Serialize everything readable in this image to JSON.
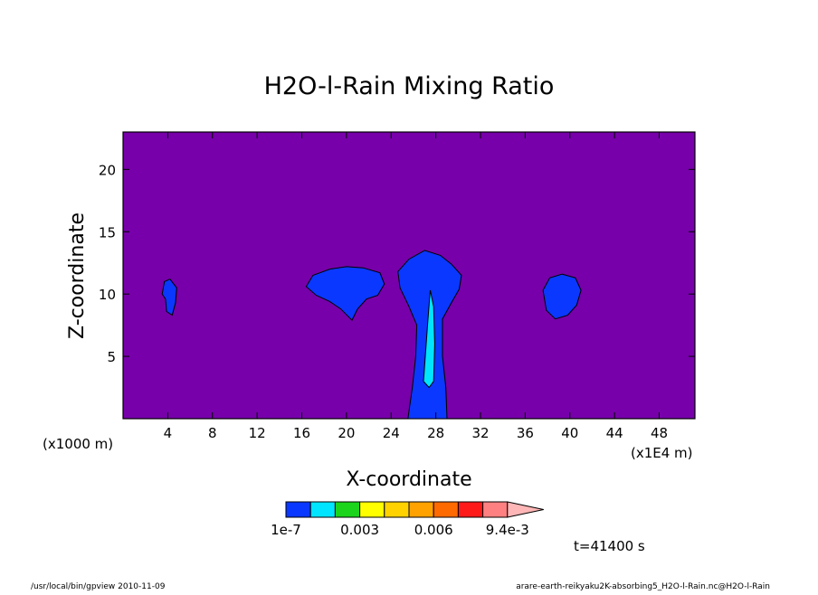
{
  "chart_data": {
    "type": "heatmap",
    "title": "H2O-l-Rain Mixing Ratio",
    "xlabel": "X-coordinate",
    "ylabel": "Z-coordinate",
    "x_unit_left": "(x1000 m)",
    "x_unit_right": "(x1E4 m)",
    "xlim": [
      0,
      51.2
    ],
    "ylim": [
      0,
      23
    ],
    "x_ticks": [
      4,
      8,
      12,
      16,
      20,
      24,
      28,
      32,
      36,
      40,
      44,
      48
    ],
    "y_ticks": [
      5,
      10,
      15,
      20
    ],
    "background_color": "#7700aa",
    "cells": [
      {
        "level": "low",
        "points": [
          [
            3.5,
            10
          ],
          [
            3.7,
            11
          ],
          [
            4.2,
            11.2
          ],
          [
            4.8,
            10.5
          ],
          [
            4.7,
            9.3
          ],
          [
            4.4,
            8.3
          ],
          [
            3.9,
            8.6
          ],
          [
            3.8,
            9.6
          ]
        ]
      },
      {
        "level": "low",
        "points": [
          [
            16.4,
            10.6
          ],
          [
            17,
            11.5
          ],
          [
            18.5,
            12.0
          ],
          [
            20,
            12.2
          ],
          [
            21.5,
            12.1
          ],
          [
            23,
            11.7
          ],
          [
            23.4,
            10.8
          ],
          [
            22.8,
            9.9
          ],
          [
            21.8,
            9.6
          ],
          [
            21,
            8.8
          ],
          [
            20.5,
            7.9
          ],
          [
            19.5,
            8.8
          ],
          [
            18.5,
            9.4
          ],
          [
            17.3,
            9.9
          ]
        ]
      },
      {
        "level": "low",
        "points": [
          [
            25.5,
            0
          ],
          [
            25.9,
            2.5
          ],
          [
            26.2,
            5
          ],
          [
            26.3,
            7.5
          ],
          [
            25.6,
            9.0
          ],
          [
            24.8,
            10.5
          ],
          [
            24.6,
            11.8
          ],
          [
            25.6,
            12.8
          ],
          [
            27,
            13.5
          ],
          [
            28.4,
            13.1
          ],
          [
            29.4,
            12.4
          ],
          [
            30.3,
            11.5
          ],
          [
            30.1,
            10.4
          ],
          [
            29.4,
            9.3
          ],
          [
            28.6,
            8.0
          ],
          [
            28.6,
            5.0
          ],
          [
            28.9,
            2.5
          ],
          [
            29.0,
            0
          ]
        ]
      },
      {
        "level": "low",
        "points": [
          [
            37.6,
            10.3
          ],
          [
            38.2,
            11.3
          ],
          [
            39.3,
            11.6
          ],
          [
            40.5,
            11.3
          ],
          [
            41,
            10.3
          ],
          [
            40.6,
            9.1
          ],
          [
            39.8,
            8.3
          ],
          [
            38.7,
            8.0
          ],
          [
            37.9,
            8.7
          ]
        ]
      },
      {
        "level": "mid",
        "points": [
          [
            26.9,
            3.0
          ],
          [
            27.1,
            5.5
          ],
          [
            27.3,
            8.0
          ],
          [
            27.5,
            10.3
          ],
          [
            27.8,
            9.0
          ],
          [
            27.9,
            6.0
          ],
          [
            27.8,
            3.0
          ],
          [
            27.4,
            2.5
          ]
        ]
      }
    ],
    "colorbar": {
      "colors": [
        "#0b38ff",
        "#00e5ff",
        "#1bd41b",
        "#ffff00",
        "#ffd200",
        "#ffa200",
        "#ff6a00",
        "#ff1a1a",
        "#ff8080",
        "#ffb6b6"
      ],
      "labels": [
        "1e-7",
        "0.003",
        "0.006",
        "9.4e-3"
      ],
      "label_after_box": [
        0,
        3,
        6,
        9
      ]
    },
    "time_label": "t=41400 s"
  },
  "footer": {
    "left": "/usr/local/bin/gpview  2010-11-09",
    "right": "arare-earth-reikyaku2K-absorbing5_H2O-l-Rain.nc@H2O-l-Rain"
  }
}
